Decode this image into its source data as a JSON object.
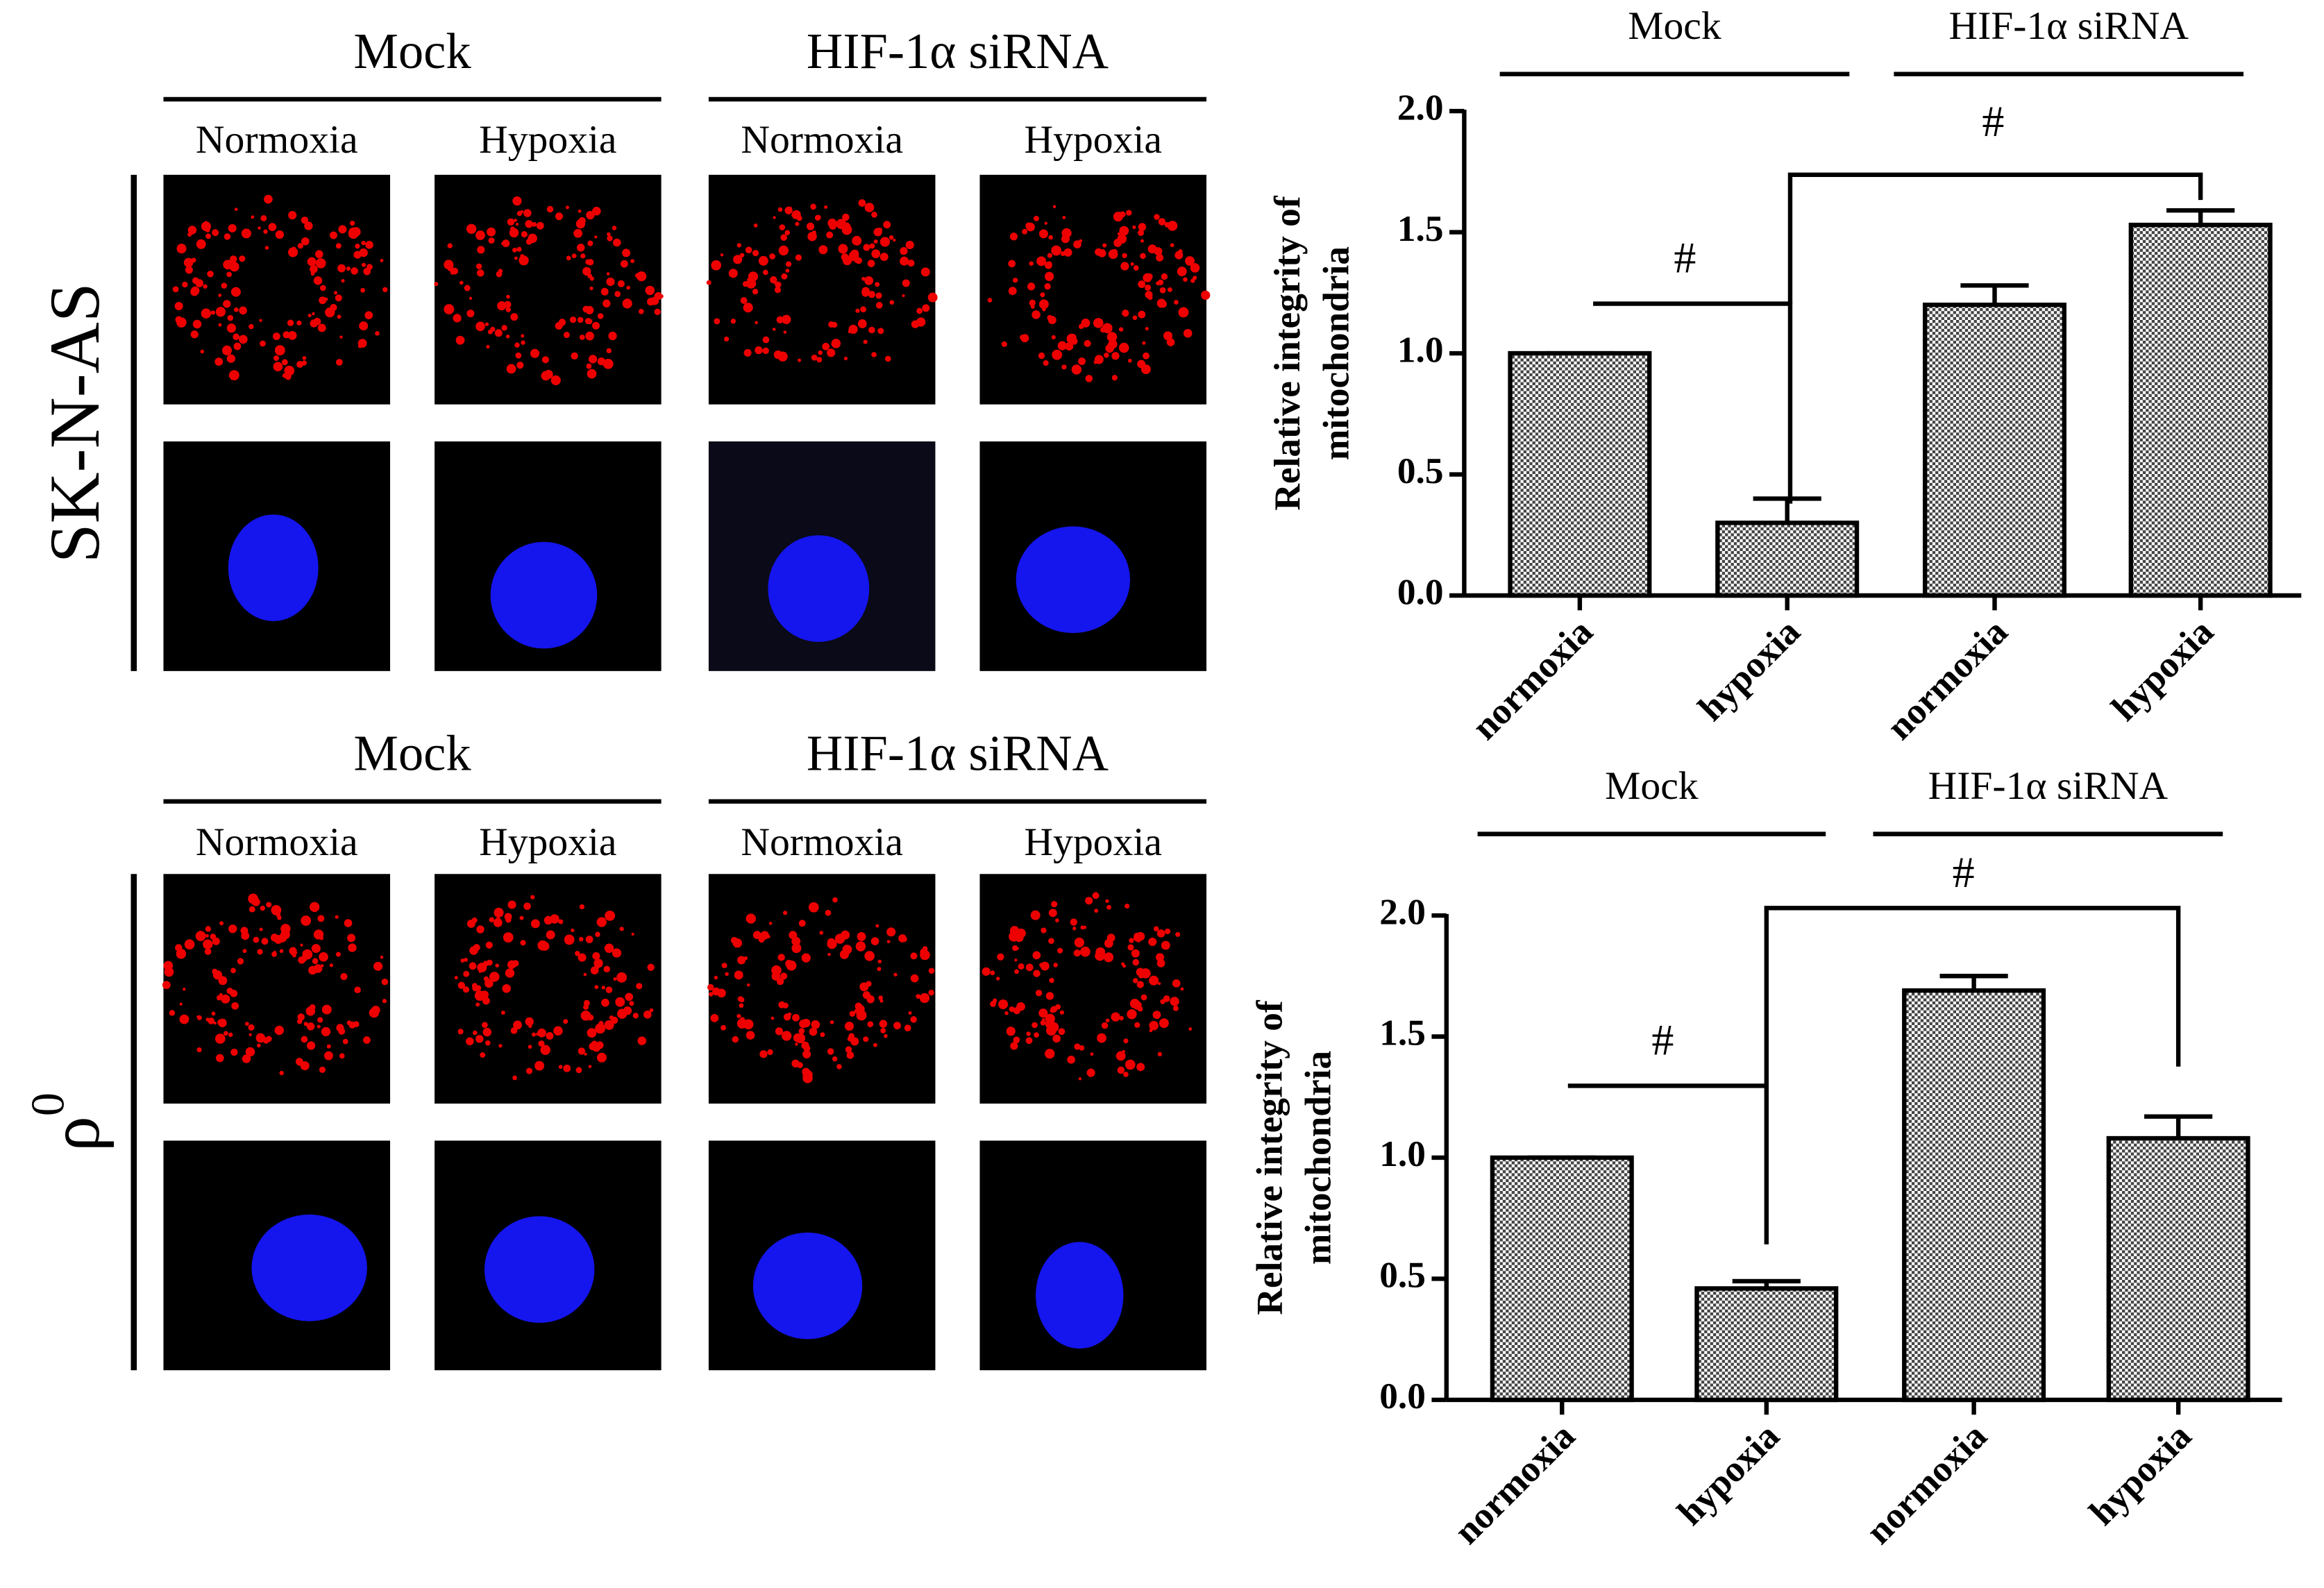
{
  "panels": {
    "rows": [
      {
        "label": "SK-N-AS",
        "groups": [
          {
            "name": "Mock",
            "conditions": [
              "Normoxia",
              "Hypoxia"
            ]
          },
          {
            "name": "HIF-1α siRNA",
            "conditions": [
              "Normoxia",
              "Hypoxia"
            ]
          }
        ]
      },
      {
        "label": "ρ",
        "superscript": "0",
        "groups": [
          {
            "name": "Mock",
            "conditions": [
              "Normoxia",
              "Hypoxia"
            ]
          },
          {
            "name": "HIF-1α siRNA",
            "conditions": [
              "Normoxia",
              "Hypoxia"
            ]
          }
        ]
      }
    ]
  },
  "chart_data": [
    {
      "type": "bar",
      "group_labels": [
        "Mock",
        "HIF-1α siRNA"
      ],
      "y_label": [
        "Relative integrity of",
        "mitochondria"
      ],
      "categories": [
        "normoxia",
        "hypoxia",
        "normoxia",
        "hypoxia"
      ],
      "values": [
        1.0,
        0.3,
        1.2,
        1.53
      ],
      "errors": [
        0,
        0.1,
        0.08,
        0.06
      ],
      "ylim": [
        0,
        2
      ],
      "yticks": [
        {
          "value": 0,
          "label": "0.0"
        },
        {
          "value": 0.5,
          "label": "0.5"
        },
        {
          "value": 1,
          "label": "1.0"
        },
        {
          "value": 1.5,
          "label": "1.5"
        },
        {
          "value": 2,
          "label": "2.0"
        }
      ],
      "annotations": [
        "#",
        "#"
      ]
    },
    {
      "type": "bar",
      "group_labels": [
        "Mock",
        "HIF-1α siRNA"
      ],
      "y_label": [
        "Relative integrity of",
        "mitochondria"
      ],
      "categories": [
        "normoxia",
        "hypoxia",
        "normoxia",
        "hypoxia"
      ],
      "values": [
        1.0,
        0.46,
        1.69,
        1.08
      ],
      "errors": [
        0,
        0.03,
        0.06,
        0.09
      ],
      "ylim": [
        0,
        2
      ],
      "yticks": [
        {
          "value": 0,
          "label": "0.0"
        },
        {
          "value": 0.5,
          "label": "0.5"
        },
        {
          "value": 1,
          "label": "1.0"
        },
        {
          "value": 1.5,
          "label": "1.5"
        },
        {
          "value": 2,
          "label": "2.0"
        }
      ],
      "annotations": [
        "#",
        "#"
      ]
    }
  ]
}
